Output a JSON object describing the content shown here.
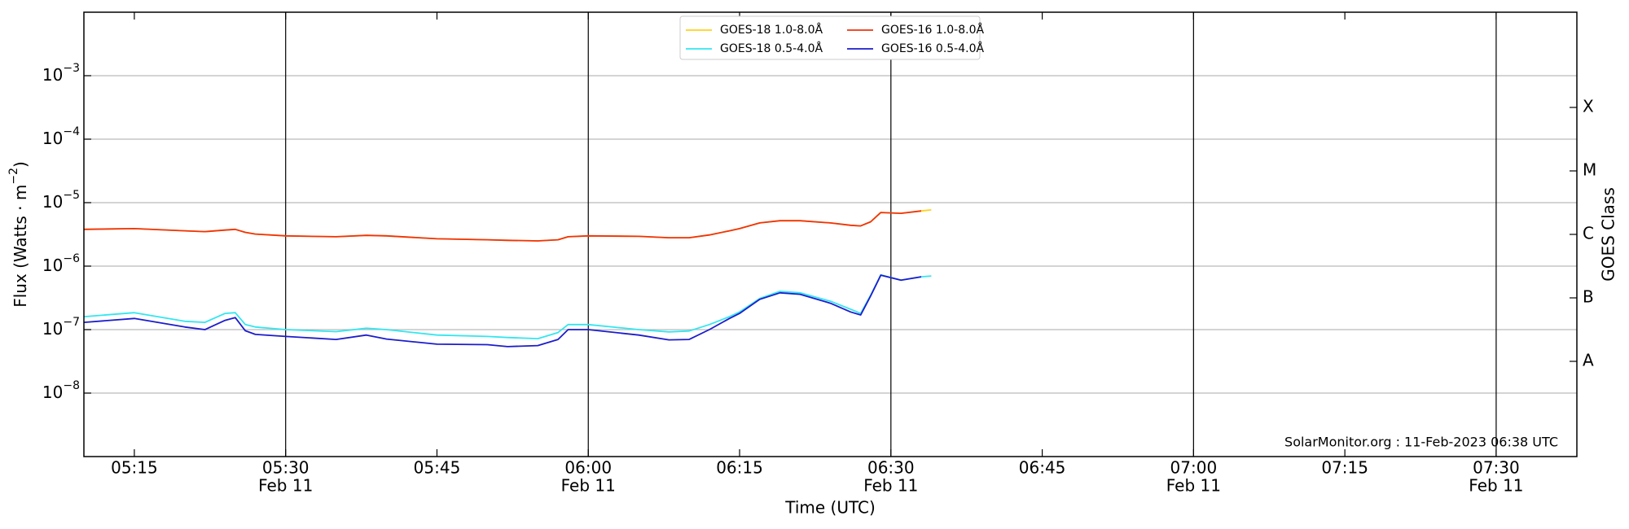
{
  "chart_data": {
    "type": "line",
    "xlabel": "Time (UTC)",
    "ylabel": [
      "Flux (Watts · m",
      "−2",
      ")"
    ],
    "y2label": "GOES Class",
    "annotation": "SolarMonitor.org : 11-Feb-2023 06:38 UTC",
    "log_y": true,
    "grid": true,
    "legend": "upper center",
    "xlim": [
      "05:10",
      "07:38"
    ],
    "xticks": [
      "05:15",
      {
        "value": "05:30",
        "label": [
          "05:30",
          "Feb 11"
        ]
      },
      "05:45",
      {
        "value": "06:00",
        "label": [
          "06:00",
          "Feb 11"
        ]
      },
      "06:15",
      {
        "value": "06:30",
        "label": [
          "06:30",
          "Feb 11"
        ]
      },
      "06:45",
      {
        "value": "07:00",
        "label": [
          "07:00",
          "Feb 11"
        ]
      },
      "07:15",
      {
        "value": "07:30",
        "label": [
          "07:30",
          "Feb 11"
        ]
      }
    ],
    "ylim": [
      1e-09,
      0.01
    ],
    "yticks": [
      {
        "value": 1e-08,
        "label": [
          "10",
          "−8"
        ]
      },
      {
        "value": 1e-07,
        "label": [
          "10",
          "−7"
        ]
      },
      {
        "value": 1e-06,
        "label": [
          "10",
          "−6"
        ]
      },
      {
        "value": 1e-05,
        "label": [
          "10",
          "−5"
        ]
      },
      {
        "value": 0.0001,
        "label": [
          "10",
          "−4"
        ]
      },
      {
        "value": 0.001,
        "label": [
          "10",
          "−3"
        ]
      }
    ],
    "y2lim": [
      1e-09,
      0.01
    ],
    "y2ticks": [
      {
        "value": 3.162e-08,
        "label": "A"
      },
      {
        "value": 3.162e-07,
        "label": "B"
      },
      {
        "value": 3.162e-06,
        "label": "C"
      },
      {
        "value": 3.162e-05,
        "label": "M"
      },
      {
        "value": 0.0003162,
        "label": "X"
      }
    ],
    "x": [
      "05:10",
      "05:15",
      "05:20",
      "05:22",
      "05:24",
      "05:25",
      "05:26",
      "05:27",
      "05:30",
      "05:35",
      "05:38",
      "05:40",
      "05:45",
      "05:50",
      "05:52",
      "05:55",
      "05:57",
      "05:58",
      "06:00",
      "06:05",
      "06:08",
      "06:10",
      "06:12",
      "06:14",
      "06:15",
      "06:17",
      "06:19",
      "06:21",
      "06:24",
      "06:26",
      "06:27",
      "06:28",
      "06:29",
      "06:31",
      "06:33",
      "06:34"
    ],
    "series": [
      {
        "name": "GOES-18 1.0-8.0Å",
        "color": "#ffd21a",
        "values": [
          3.8e-06,
          3.9e-06,
          3.6e-06,
          3.5e-06,
          3.7e-06,
          3.8e-06,
          3.4e-06,
          3.2e-06,
          3e-06,
          2.9e-06,
          3.05e-06,
          3e-06,
          2.7e-06,
          2.6e-06,
          2.55e-06,
          2.5e-06,
          2.6e-06,
          2.9e-06,
          3e-06,
          2.95e-06,
          2.8e-06,
          2.8e-06,
          3.1e-06,
          3.6e-06,
          3.9e-06,
          4.8e-06,
          5.2e-06,
          5.2e-06,
          4.8e-06,
          4.4e-06,
          4.3e-06,
          5e-06,
          7e-06,
          6.8e-06,
          7.4e-06,
          7.7e-06
        ]
      },
      {
        "name": "GOES-18 0.5-4.0Å",
        "color": "#33e6f0",
        "values": [
          1.6e-07,
          1.85e-07,
          1.35e-07,
          1.3e-07,
          1.8e-07,
          1.85e-07,
          1.2e-07,
          1.1e-07,
          1e-07,
          9.3e-08,
          1.05e-07,
          1e-07,
          8.2e-08,
          7.8e-08,
          7.5e-08,
          7.2e-08,
          9e-08,
          1.2e-07,
          1.2e-07,
          1e-07,
          9.2e-08,
          9.5e-08,
          1.2e-07,
          1.6e-07,
          1.9e-07,
          3.1e-07,
          4e-07,
          3.8e-07,
          2.8e-07,
          2.1e-07,
          1.8e-07,
          3.5e-07,
          7.3e-07,
          6e-07,
          6.8e-07,
          7e-07
        ]
      },
      {
        "name": "GOES-16 1.0-8.0Å",
        "color": "#f0330d",
        "values": [
          3.8e-06,
          3.9e-06,
          3.6e-06,
          3.5e-06,
          3.7e-06,
          3.8e-06,
          3.4e-06,
          3.2e-06,
          3e-06,
          2.9e-06,
          3.05e-06,
          3e-06,
          2.7e-06,
          2.6e-06,
          2.55e-06,
          2.5e-06,
          2.6e-06,
          2.9e-06,
          3e-06,
          2.95e-06,
          2.8e-06,
          2.8e-06,
          3.1e-06,
          3.6e-06,
          3.9e-06,
          4.8e-06,
          5.2e-06,
          5.2e-06,
          4.8e-06,
          4.4e-06,
          4.3e-06,
          5e-06,
          7e-06,
          6.8e-06,
          7.4e-06,
          null
        ]
      },
      {
        "name": "GOES-16 0.5-4.0Å",
        "color": "#1c1ccc",
        "values": [
          1.3e-07,
          1.5e-07,
          1.1e-07,
          1e-07,
          1.4e-07,
          1.55e-07,
          9.6e-08,
          8.4e-08,
          7.8e-08,
          7e-08,
          8.2e-08,
          7.1e-08,
          5.9e-08,
          5.8e-08,
          5.4e-08,
          5.6e-08,
          7e-08,
          1e-07,
          1e-07,
          8.2e-08,
          6.9e-08,
          7e-08,
          1e-07,
          1.5e-07,
          1.8e-07,
          3e-07,
          3.8e-07,
          3.6e-07,
          2.6e-07,
          1.9e-07,
          1.7e-07,
          3.4e-07,
          7.2e-07,
          6e-07,
          6.8e-07,
          null
        ]
      }
    ]
  }
}
